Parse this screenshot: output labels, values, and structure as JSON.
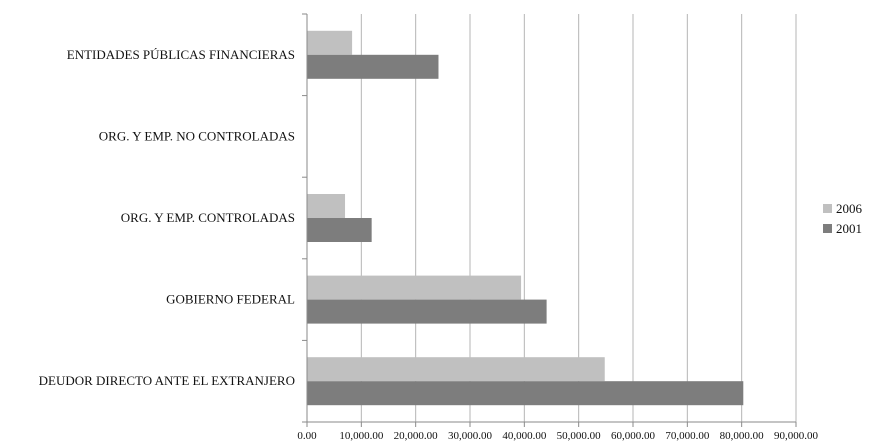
{
  "chart_data": {
    "type": "bar",
    "orientation": "horizontal",
    "categories": [
      "ENTIDADES PÚBLICAS FINANCIERAS",
      "ORG. Y EMP. NO CONTROLADAS",
      "ORG. Y EMP. CONTROLADAS",
      "GOBIERNO FEDERAL",
      "DEUDOR DIRECTO ANTE EL EXTRANJERO"
    ],
    "series": [
      {
        "name": "2006",
        "color": "#c0c0c0",
        "values": [
          8300,
          0,
          7000,
          39400,
          54800
        ]
      },
      {
        "name": "2001",
        "color": "#7d7d7d",
        "values": [
          24200,
          0,
          11900,
          44100,
          80300
        ]
      }
    ],
    "xlim": [
      0,
      90000
    ],
    "xticks": [
      0,
      10000,
      20000,
      30000,
      40000,
      50000,
      60000,
      70000,
      80000,
      90000
    ],
    "xtick_labels": [
      "0.00",
      "10,000.00",
      "20,000.00",
      "30,000.00",
      "40,000.00",
      "50,000.00",
      "60,000.00",
      "70,000.00",
      "80,000.00",
      "90,000.00"
    ],
    "title": "",
    "xlabel": "",
    "ylabel": "",
    "grid": "vertical",
    "legend": {
      "placement": "right",
      "entries": [
        "2006",
        "2001"
      ]
    }
  }
}
